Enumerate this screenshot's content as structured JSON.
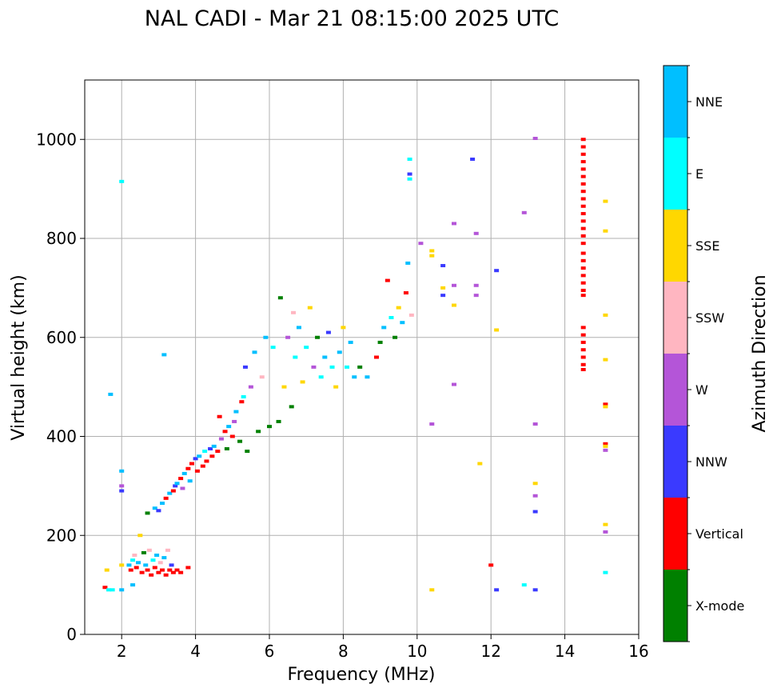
{
  "chart_data": {
    "type": "scatter",
    "title": "NAL CADI - Mar 21 08:15:00 2025 UTC",
    "xlabel": "Frequency (MHz)",
    "ylabel": "Virtual height (km)",
    "xlim": [
      1,
      16
    ],
    "ylim": [
      0,
      1120
    ],
    "xticks": [
      2,
      4,
      6,
      8,
      10,
      12,
      14,
      16
    ],
    "yticks": [
      0,
      200,
      400,
      600,
      800,
      1000
    ],
    "grid": true,
    "colorbar": {
      "label": "Azimuth Direction",
      "categories": [
        {
          "name": "X-mode",
          "color": "#008000"
        },
        {
          "name": "Vertical",
          "color": "#ff0000"
        },
        {
          "name": "NNW",
          "color": "#3a3aff"
        },
        {
          "name": "W",
          "color": "#b455d8"
        },
        {
          "name": "SSW",
          "color": "#ffb6c1"
        },
        {
          "name": "SSE",
          "color": "#ffd700"
        },
        {
          "name": "E",
          "color": "#00ffff"
        },
        {
          "name": "NNE",
          "color": "#00bfff"
        }
      ]
    },
    "points": [
      {
        "f": 1.55,
        "h": 95,
        "d": "Vertical"
      },
      {
        "f": 1.6,
        "h": 130,
        "d": "SSE"
      },
      {
        "f": 1.65,
        "h": 90,
        "d": "E"
      },
      {
        "f": 1.7,
        "h": 485,
        "d": "NNE"
      },
      {
        "f": 1.75,
        "h": 90,
        "d": "E"
      },
      {
        "f": 2.0,
        "h": 915,
        "d": "E"
      },
      {
        "f": 2.0,
        "h": 330,
        "d": "NNE"
      },
      {
        "f": 2.0,
        "h": 300,
        "d": "W"
      },
      {
        "f": 2.0,
        "h": 290,
        "d": "NNW"
      },
      {
        "f": 2.0,
        "h": 140,
        "d": "SSE"
      },
      {
        "f": 2.0,
        "h": 90,
        "d": "NNE"
      },
      {
        "f": 2.2,
        "h": 140,
        "d": "NNE"
      },
      {
        "f": 2.25,
        "h": 130,
        "d": "Vertical"
      },
      {
        "f": 2.3,
        "h": 150,
        "d": "E"
      },
      {
        "f": 2.3,
        "h": 100,
        "d": "NNE"
      },
      {
        "f": 2.35,
        "h": 160,
        "d": "SSW"
      },
      {
        "f": 2.4,
        "h": 135,
        "d": "Vertical"
      },
      {
        "f": 2.45,
        "h": 145,
        "d": "NNE"
      },
      {
        "f": 2.5,
        "h": 200,
        "d": "SSE"
      },
      {
        "f": 2.55,
        "h": 125,
        "d": "Vertical"
      },
      {
        "f": 2.6,
        "h": 165,
        "d": "X-mode"
      },
      {
        "f": 2.65,
        "h": 140,
        "d": "NNE"
      },
      {
        "f": 2.7,
        "h": 130,
        "d": "Vertical"
      },
      {
        "f": 2.75,
        "h": 170,
        "d": "SSW"
      },
      {
        "f": 2.8,
        "h": 120,
        "d": "Vertical"
      },
      {
        "f": 2.85,
        "h": 150,
        "d": "E"
      },
      {
        "f": 2.9,
        "h": 135,
        "d": "Vertical"
      },
      {
        "f": 2.95,
        "h": 160,
        "d": "NNE"
      },
      {
        "f": 3.0,
        "h": 125,
        "d": "Vertical"
      },
      {
        "f": 3.05,
        "h": 145,
        "d": "SSW"
      },
      {
        "f": 3.1,
        "h": 130,
        "d": "Vertical"
      },
      {
        "f": 3.15,
        "h": 155,
        "d": "NNE"
      },
      {
        "f": 3.2,
        "h": 120,
        "d": "Vertical"
      },
      {
        "f": 3.25,
        "h": 170,
        "d": "SSW"
      },
      {
        "f": 3.3,
        "h": 130,
        "d": "Vertical"
      },
      {
        "f": 3.35,
        "h": 140,
        "d": "NNW"
      },
      {
        "f": 3.4,
        "h": 125,
        "d": "Vertical"
      },
      {
        "f": 3.5,
        "h": 130,
        "d": "Vertical"
      },
      {
        "f": 3.6,
        "h": 125,
        "d": "Vertical"
      },
      {
        "f": 3.8,
        "h": 135,
        "d": "Vertical"
      },
      {
        "f": 2.7,
        "h": 245,
        "d": "X-mode"
      },
      {
        "f": 2.9,
        "h": 255,
        "d": "NNE"
      },
      {
        "f": 3.0,
        "h": 250,
        "d": "NNW"
      },
      {
        "f": 3.1,
        "h": 265,
        "d": "NNE"
      },
      {
        "f": 3.15,
        "h": 565,
        "d": "NNE"
      },
      {
        "f": 3.2,
        "h": 275,
        "d": "Vertical"
      },
      {
        "f": 3.3,
        "h": 285,
        "d": "NNE"
      },
      {
        "f": 3.4,
        "h": 290,
        "d": "Vertical"
      },
      {
        "f": 3.45,
        "h": 300,
        "d": "NNW"
      },
      {
        "f": 3.5,
        "h": 305,
        "d": "NNE"
      },
      {
        "f": 3.6,
        "h": 315,
        "d": "Vertical"
      },
      {
        "f": 3.65,
        "h": 295,
        "d": "W"
      },
      {
        "f": 3.7,
        "h": 325,
        "d": "NNE"
      },
      {
        "f": 3.8,
        "h": 335,
        "d": "Vertical"
      },
      {
        "f": 3.85,
        "h": 310,
        "d": "NNE"
      },
      {
        "f": 3.9,
        "h": 345,
        "d": "Vertical"
      },
      {
        "f": 4.0,
        "h": 355,
        "d": "NNW"
      },
      {
        "f": 4.05,
        "h": 330,
        "d": "Vertical"
      },
      {
        "f": 4.1,
        "h": 360,
        "d": "NNE"
      },
      {
        "f": 4.2,
        "h": 340,
        "d": "Vertical"
      },
      {
        "f": 4.25,
        "h": 370,
        "d": "E"
      },
      {
        "f": 4.3,
        "h": 350,
        "d": "Vertical"
      },
      {
        "f": 4.4,
        "h": 375,
        "d": "NNW"
      },
      {
        "f": 4.45,
        "h": 360,
        "d": "Vertical"
      },
      {
        "f": 4.5,
        "h": 380,
        "d": "NNE"
      },
      {
        "f": 4.6,
        "h": 370,
        "d": "Vertical"
      },
      {
        "f": 4.65,
        "h": 440,
        "d": "Vertical"
      },
      {
        "f": 4.7,
        "h": 395,
        "d": "W"
      },
      {
        "f": 4.8,
        "h": 410,
        "d": "Vertical"
      },
      {
        "f": 4.85,
        "h": 375,
        "d": "X-mode"
      },
      {
        "f": 4.9,
        "h": 420,
        "d": "NNE"
      },
      {
        "f": 5.0,
        "h": 400,
        "d": "Vertical"
      },
      {
        "f": 5.05,
        "h": 430,
        "d": "W"
      },
      {
        "f": 5.1,
        "h": 450,
        "d": "NNE"
      },
      {
        "f": 5.2,
        "h": 390,
        "d": "X-mode"
      },
      {
        "f": 5.25,
        "h": 470,
        "d": "Vertical"
      },
      {
        "f": 5.3,
        "h": 480,
        "d": "E"
      },
      {
        "f": 5.35,
        "h": 540,
        "d": "NNW"
      },
      {
        "f": 5.4,
        "h": 370,
        "d": "X-mode"
      },
      {
        "f": 5.5,
        "h": 500,
        "d": "W"
      },
      {
        "f": 5.6,
        "h": 570,
        "d": "NNE"
      },
      {
        "f": 5.7,
        "h": 410,
        "d": "X-mode"
      },
      {
        "f": 5.8,
        "h": 520,
        "d": "SSW"
      },
      {
        "f": 5.9,
        "h": 600,
        "d": "NNE"
      },
      {
        "f": 6.0,
        "h": 420,
        "d": "X-mode"
      },
      {
        "f": 6.1,
        "h": 580,
        "d": "E"
      },
      {
        "f": 6.25,
        "h": 430,
        "d": "X-mode"
      },
      {
        "f": 6.3,
        "h": 680,
        "d": "X-mode"
      },
      {
        "f": 6.4,
        "h": 500,
        "d": "SSE"
      },
      {
        "f": 6.5,
        "h": 600,
        "d": "W"
      },
      {
        "f": 6.6,
        "h": 460,
        "d": "X-mode"
      },
      {
        "f": 6.65,
        "h": 650,
        "d": "SSW"
      },
      {
        "f": 6.7,
        "h": 560,
        "d": "E"
      },
      {
        "f": 6.8,
        "h": 620,
        "d": "NNE"
      },
      {
        "f": 6.9,
        "h": 510,
        "d": "SSE"
      },
      {
        "f": 7.0,
        "h": 580,
        "d": "E"
      },
      {
        "f": 7.1,
        "h": 660,
        "d": "SSE"
      },
      {
        "f": 7.2,
        "h": 540,
        "d": "W"
      },
      {
        "f": 7.3,
        "h": 600,
        "d": "X-mode"
      },
      {
        "f": 7.4,
        "h": 520,
        "d": "E"
      },
      {
        "f": 7.5,
        "h": 560,
        "d": "NNE"
      },
      {
        "f": 7.6,
        "h": 610,
        "d": "NNW"
      },
      {
        "f": 7.7,
        "h": 540,
        "d": "E"
      },
      {
        "f": 7.8,
        "h": 500,
        "d": "SSE"
      },
      {
        "f": 7.9,
        "h": 570,
        "d": "NNE"
      },
      {
        "f": 8.0,
        "h": 620,
        "d": "SSE"
      },
      {
        "f": 8.1,
        "h": 540,
        "d": "E"
      },
      {
        "f": 8.2,
        "h": 590,
        "d": "NNE"
      },
      {
        "f": 8.3,
        "h": 520,
        "d": "NNE"
      },
      {
        "f": 8.45,
        "h": 540,
        "d": "X-mode"
      },
      {
        "f": 8.65,
        "h": 520,
        "d": "NNE"
      },
      {
        "f": 8.9,
        "h": 560,
        "d": "Vertical"
      },
      {
        "f": 9.0,
        "h": 590,
        "d": "X-mode"
      },
      {
        "f": 9.1,
        "h": 620,
        "d": "NNE"
      },
      {
        "f": 9.2,
        "h": 715,
        "d": "Vertical"
      },
      {
        "f": 9.3,
        "h": 640,
        "d": "E"
      },
      {
        "f": 9.4,
        "h": 600,
        "d": "X-mode"
      },
      {
        "f": 9.5,
        "h": 660,
        "d": "SSE"
      },
      {
        "f": 9.6,
        "h": 630,
        "d": "NNE"
      },
      {
        "f": 9.7,
        "h": 690,
        "d": "Vertical"
      },
      {
        "f": 9.75,
        "h": 750,
        "d": "NNE"
      },
      {
        "f": 9.8,
        "h": 930,
        "d": "NNW"
      },
      {
        "f": 9.8,
        "h": 920,
        "d": "E"
      },
      {
        "f": 9.8,
        "h": 960,
        "d": "E"
      },
      {
        "f": 9.85,
        "h": 645,
        "d": "SSW"
      },
      {
        "f": 10.1,
        "h": 790,
        "d": "W"
      },
      {
        "f": 10.4,
        "h": 775,
        "d": "SSE"
      },
      {
        "f": 10.4,
        "h": 765,
        "d": "SSE"
      },
      {
        "f": 10.4,
        "h": 425,
        "d": "W"
      },
      {
        "f": 10.4,
        "h": 90,
        "d": "SSE"
      },
      {
        "f": 10.7,
        "h": 700,
        "d": "SSE"
      },
      {
        "f": 10.7,
        "h": 685,
        "d": "NNW"
      },
      {
        "f": 10.7,
        "h": 745,
        "d": "NNW"
      },
      {
        "f": 11.0,
        "h": 830,
        "d": "W"
      },
      {
        "f": 11.0,
        "h": 705,
        "d": "W"
      },
      {
        "f": 11.0,
        "h": 665,
        "d": "SSE"
      },
      {
        "f": 11.0,
        "h": 505,
        "d": "W"
      },
      {
        "f": 11.5,
        "h": 960,
        "d": "NNW"
      },
      {
        "f": 11.6,
        "h": 810,
        "d": "W"
      },
      {
        "f": 11.6,
        "h": 705,
        "d": "W"
      },
      {
        "f": 11.6,
        "h": 685,
        "d": "W"
      },
      {
        "f": 11.7,
        "h": 345,
        "d": "SSE"
      },
      {
        "f": 12.0,
        "h": 140,
        "d": "Vertical"
      },
      {
        "f": 12.15,
        "h": 735,
        "d": "NNW"
      },
      {
        "f": 12.15,
        "h": 615,
        "d": "SSE"
      },
      {
        "f": 12.15,
        "h": 90,
        "d": "NNW"
      },
      {
        "f": 12.9,
        "h": 852,
        "d": "W"
      },
      {
        "f": 12.9,
        "h": 100,
        "d": "E"
      },
      {
        "f": 13.2,
        "h": 1002,
        "d": "W"
      },
      {
        "f": 13.2,
        "h": 425,
        "d": "W"
      },
      {
        "f": 13.2,
        "h": 305,
        "d": "SSE"
      },
      {
        "f": 13.2,
        "h": 280,
        "d": "W"
      },
      {
        "f": 13.2,
        "h": 248,
        "d": "NNW"
      },
      {
        "f": 13.2,
        "h": 90,
        "d": "NNW"
      },
      {
        "f": 14.5,
        "h": 1000,
        "d": "Vertical"
      },
      {
        "f": 14.5,
        "h": 985,
        "d": "Vertical"
      },
      {
        "f": 14.5,
        "h": 970,
        "d": "Vertical"
      },
      {
        "f": 14.5,
        "h": 955,
        "d": "Vertical"
      },
      {
        "f": 14.5,
        "h": 940,
        "d": "Vertical"
      },
      {
        "f": 14.5,
        "h": 925,
        "d": "Vertical"
      },
      {
        "f": 14.5,
        "h": 910,
        "d": "Vertical"
      },
      {
        "f": 14.5,
        "h": 895,
        "d": "Vertical"
      },
      {
        "f": 14.5,
        "h": 880,
        "d": "Vertical"
      },
      {
        "f": 14.5,
        "h": 865,
        "d": "Vertical"
      },
      {
        "f": 14.5,
        "h": 850,
        "d": "Vertical"
      },
      {
        "f": 14.5,
        "h": 835,
        "d": "Vertical"
      },
      {
        "f": 14.5,
        "h": 820,
        "d": "Vertical"
      },
      {
        "f": 14.5,
        "h": 805,
        "d": "Vertical"
      },
      {
        "f": 14.5,
        "h": 790,
        "d": "Vertical"
      },
      {
        "f": 14.5,
        "h": 770,
        "d": "Vertical"
      },
      {
        "f": 14.5,
        "h": 755,
        "d": "Vertical"
      },
      {
        "f": 14.5,
        "h": 740,
        "d": "Vertical"
      },
      {
        "f": 14.5,
        "h": 725,
        "d": "Vertical"
      },
      {
        "f": 14.5,
        "h": 710,
        "d": "Vertical"
      },
      {
        "f": 14.5,
        "h": 695,
        "d": "Vertical"
      },
      {
        "f": 14.5,
        "h": 685,
        "d": "Vertical"
      },
      {
        "f": 14.5,
        "h": 620,
        "d": "Vertical"
      },
      {
        "f": 14.5,
        "h": 605,
        "d": "Vertical"
      },
      {
        "f": 14.5,
        "h": 590,
        "d": "Vertical"
      },
      {
        "f": 14.5,
        "h": 575,
        "d": "Vertical"
      },
      {
        "f": 14.5,
        "h": 560,
        "d": "Vertical"
      },
      {
        "f": 14.5,
        "h": 545,
        "d": "Vertical"
      },
      {
        "f": 14.5,
        "h": 535,
        "d": "Vertical"
      },
      {
        "f": 15.1,
        "h": 875,
        "d": "SSE"
      },
      {
        "f": 15.1,
        "h": 815,
        "d": "SSE"
      },
      {
        "f": 15.1,
        "h": 645,
        "d": "SSE"
      },
      {
        "f": 15.1,
        "h": 555,
        "d": "SSE"
      },
      {
        "f": 15.1,
        "h": 465,
        "d": "Vertical"
      },
      {
        "f": 15.1,
        "h": 460,
        "d": "SSE"
      },
      {
        "f": 15.1,
        "h": 385,
        "d": "Vertical"
      },
      {
        "f": 15.1,
        "h": 380,
        "d": "SSE"
      },
      {
        "f": 15.1,
        "h": 372,
        "d": "W"
      },
      {
        "f": 15.1,
        "h": 222,
        "d": "SSE"
      },
      {
        "f": 15.1,
        "h": 207,
        "d": "W"
      },
      {
        "f": 15.1,
        "h": 125,
        "d": "E"
      }
    ]
  }
}
